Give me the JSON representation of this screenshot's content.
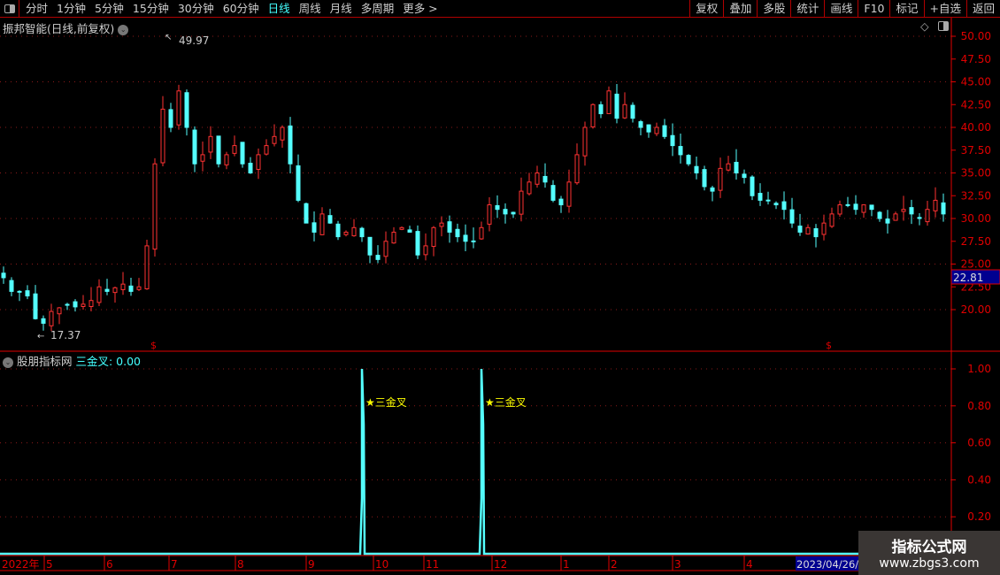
{
  "toolbar": {
    "periods": [
      "分时",
      "1分钟",
      "5分钟",
      "15分钟",
      "30分钟",
      "60分钟",
      "日线",
      "周线",
      "月线",
      "多周期",
      "更多 >"
    ],
    "active_period": "日线",
    "right_buttons": [
      "复权",
      "叠加",
      "多股",
      "统计",
      "画线",
      "F10",
      "标记",
      "+自选",
      "返回"
    ]
  },
  "main_panel": {
    "title": "振邦智能(日线,前复权)",
    "high_label": "49.97",
    "low_label": "17.37",
    "current_price": "22.81",
    "price_ticks": [
      "50.00",
      "47.50",
      "45.00",
      "42.50",
      "40.00",
      "37.50",
      "35.00",
      "32.50",
      "30.00",
      "27.50",
      "25.00",
      "22.50",
      "20.00"
    ]
  },
  "indicator_panel": {
    "name": "股朋指标网",
    "series_label": "三金叉: 0.00",
    "signal_label": "★三金叉",
    "ticks": [
      "1.00",
      "0.80",
      "0.60",
      "0.40",
      "0.20"
    ]
  },
  "date_axis": {
    "labels": [
      "2022年",
      "5",
      "6",
      "7",
      "8",
      "9",
      "10",
      "11",
      "12",
      "1",
      "2",
      "3",
      "4"
    ],
    "cursor_date": "2023/04/26/三"
  },
  "watermark": {
    "line1": "指标公式网",
    "line2": "www.zbgs3.com"
  },
  "colors": {
    "up": "#ff3232",
    "down": "#54ffff",
    "axis": "#e00000",
    "signal": "#ffff00",
    "indicator": "#54ffff"
  },
  "chart_data": {
    "type": "candlestick",
    "price_range": [
      17.37,
      49.97
    ],
    "closes": [
      23.5,
      22,
      22,
      21.5,
      19,
      18.5,
      19.8,
      20.2,
      20.5,
      20.3,
      20.6,
      21,
      22.5,
      22,
      22.4,
      22.8,
      22,
      22.5,
      27,
      36,
      42,
      40,
      44,
      40,
      36,
      37,
      39,
      36,
      37,
      38,
      36,
      35,
      37,
      38,
      39,
      40,
      36,
      32,
      29.5,
      28.5,
      30.5,
      29.5,
      28,
      28.5,
      29,
      28,
      26,
      25.5,
      27.5,
      28.5,
      29,
      28.5,
      26,
      27,
      29,
      29.5,
      28.5,
      28,
      27.5,
      27.5,
      29,
      31.5,
      31,
      30.5,
      30.5,
      33,
      34,
      35,
      34,
      32,
      31.5,
      34,
      37,
      40,
      42.5,
      41.5,
      44,
      41,
      42.5,
      41,
      40,
      39.5,
      40,
      39,
      38,
      37,
      36,
      35,
      33.5,
      33,
      35.5,
      36,
      35,
      34.5,
      32.5,
      32,
      32,
      31.5,
      31,
      29.5,
      28.5,
      29,
      28,
      29.5,
      30.5,
      31.5,
      31.5,
      31,
      31.5,
      31,
      30,
      29.5,
      30.5,
      31,
      30.5,
      30,
      31,
      32,
      30.5
    ],
    "indicator_signal_indices": [
      45,
      60
    ],
    "indicator_range": [
      0,
      1
    ]
  }
}
